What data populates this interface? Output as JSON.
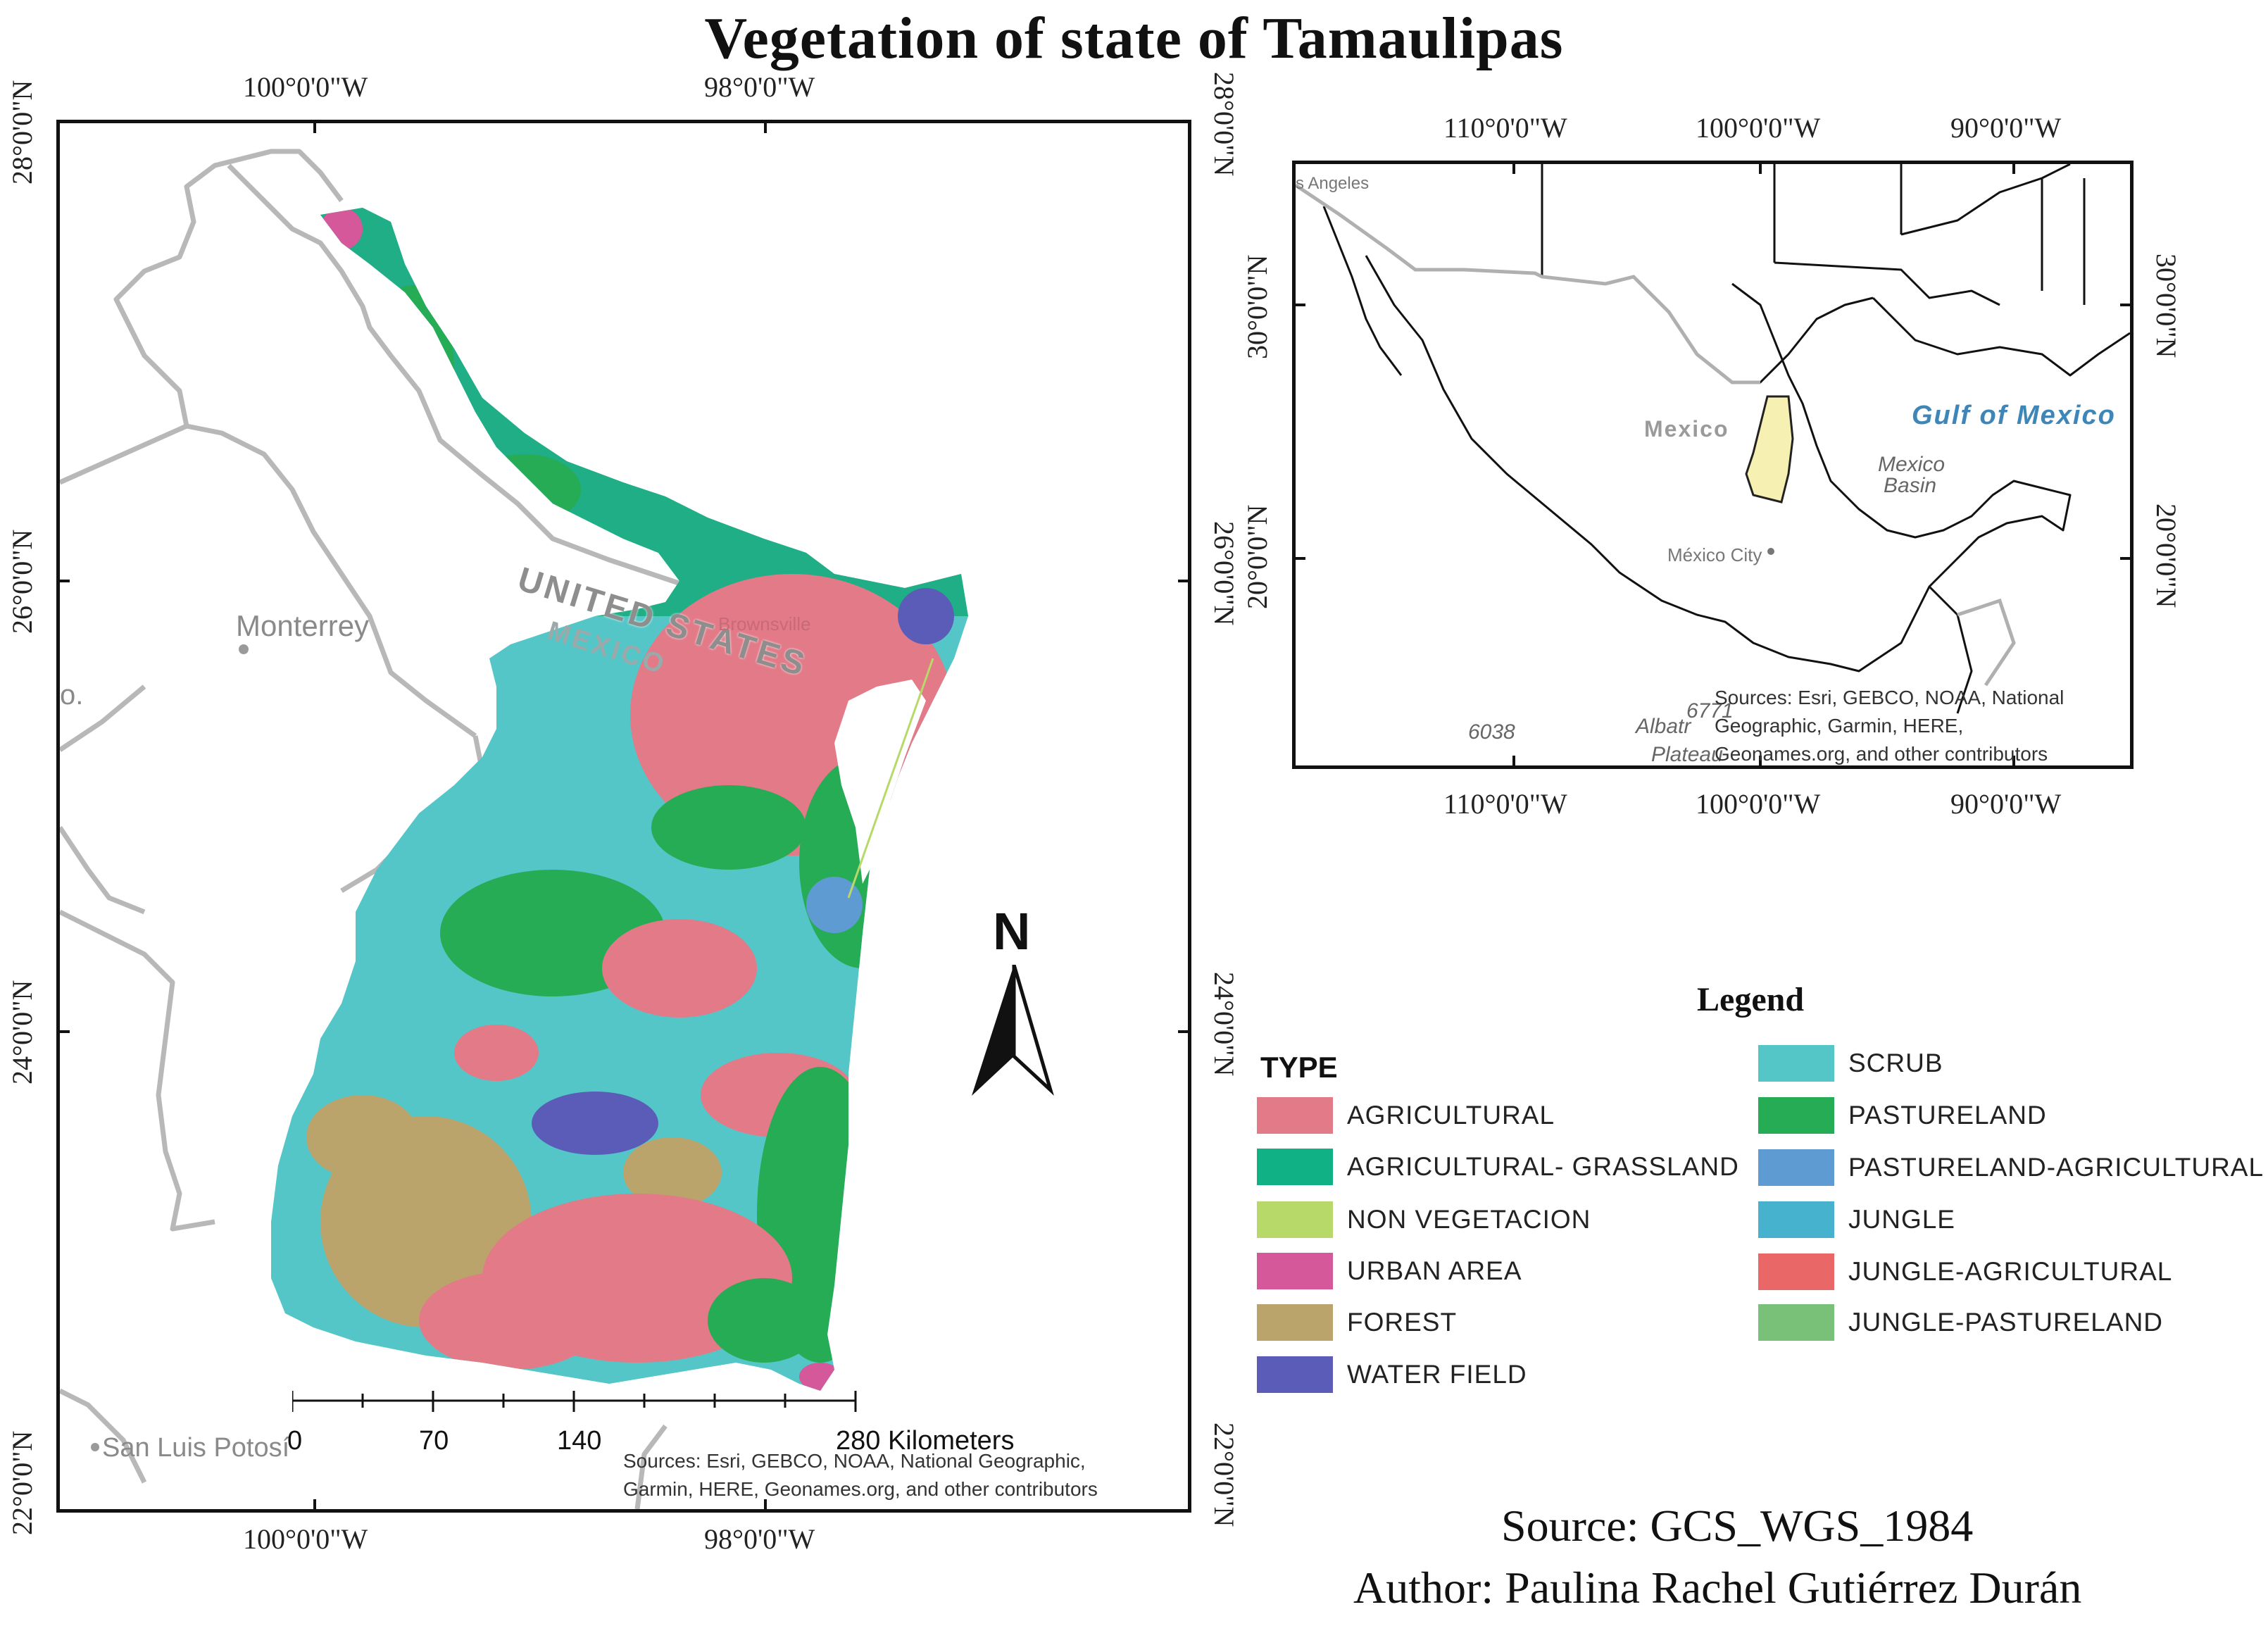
{
  "title": "Vegetation of state of Tamaulipas",
  "main_map": {
    "top_lon_labels": [
      "100°0'0\"W",
      "98°0'0\"W"
    ],
    "bottom_lon_labels": [
      "100°0'0\"W",
      "98°0'0\"W"
    ],
    "left_lat_labels": [
      "28°0'0\"N",
      "26°0'0\"N",
      "24°0'0\"N",
      "22°0'0\"N"
    ],
    "right_lat_labels": [
      "28°0'0\"N",
      "26°0'0\"N",
      "24°0'0\"N",
      "22°0'0\"N"
    ],
    "place_labels": {
      "monterrey": "Monterrey",
      "san_luis_potosi": "San Luis Potosí",
      "united_states": "UNITED STATES",
      "mexico": "MEXICO",
      "brownsville": "Brownsville",
      "edge": "o."
    },
    "scale_bar": {
      "ticks": [
        "0",
        "70",
        "140",
        "280 Kilometers"
      ]
    },
    "sources": [
      "Sources: Esri, GEBCO, NOAA, National Geographic,",
      "Garmin, HERE, Geonames.org, and other contributors"
    ]
  },
  "north_arrow": {
    "label": "N"
  },
  "inset_map": {
    "top_lon_labels": [
      "110°0'0\"W",
      "100°0'0\"W",
      "90°0'0\"W"
    ],
    "bottom_lon_labels": [
      "110°0'0\"W",
      "100°0'0\"W",
      "90°0'0\"W"
    ],
    "left_lat_labels": [
      "30°0'0\"N",
      "20°0'0\"N"
    ],
    "right_lat_labels": [
      "30°0'0\"N",
      "20°0'0\"N"
    ],
    "place_labels": {
      "los_angeles": "s Angeles",
      "mexico": "Mexico",
      "mexico_city": "México City",
      "gulf": "Gulf of Mexico",
      "basin_1": "Mexico",
      "basin_2": "Basin",
      "depth_1": "6038",
      "depth_2": "6771",
      "albatross_1": "Albatr",
      "albatross_2": "Plateau"
    },
    "sources": [
      "Sources: Esri, GEBCO, NOAA, National",
      "Geographic, Garmin, HERE,",
      "Geonames.org, and other contributors"
    ]
  },
  "legend": {
    "title": "Legend",
    "type_label": "TYPE",
    "left_items": [
      {
        "label": "AGRICULTURAL",
        "color": "#e27a87"
      },
      {
        "label": "AGRICULTURAL- GRASSLAND",
        "color": "#10b184"
      },
      {
        "label": "NON VEGETACION",
        "color": "#b7d969"
      },
      {
        "label": "URBAN AREA",
        "color": "#d4589a"
      },
      {
        "label": "FOREST",
        "color": "#bba46c"
      },
      {
        "label": "WATER FIELD",
        "color": "#5a5cb8"
      }
    ],
    "right_items": [
      {
        "label": "SCRUB",
        "color": "#54c6c8"
      },
      {
        "label": "PASTURELAND",
        "color": "#26ac55"
      },
      {
        "label": "PASTURELAND-AGRICULTURAL",
        "color": "#5f9bd3"
      },
      {
        "label": "JUNGLE",
        "color": "#46b2ce"
      },
      {
        "label": "JUNGLE-AGRICULTURAL",
        "color": "#ea6767"
      },
      {
        "label": "JUNGLE-PASTURELAND",
        "color": "#79c078"
      }
    ]
  },
  "credits": {
    "source": "Source: GCS_WGS_1984",
    "author": "Author: Paulina Rachel Gutiérrez Durán"
  }
}
